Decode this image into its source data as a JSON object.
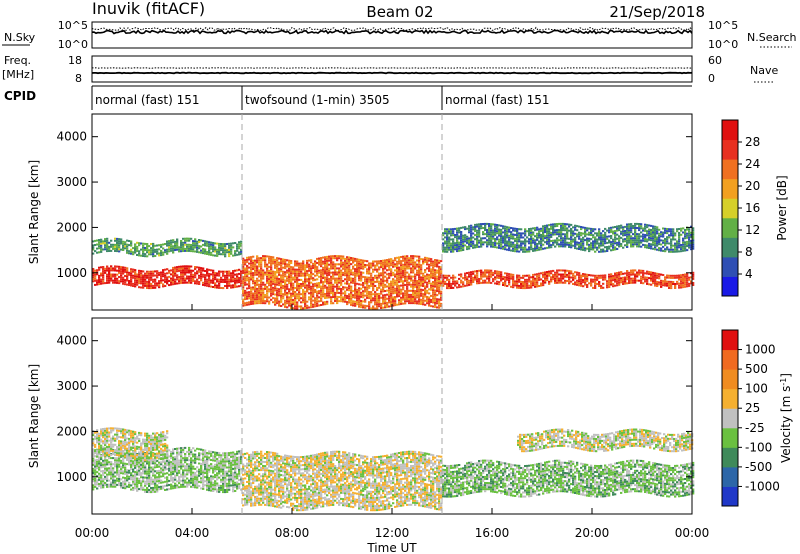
{
  "header": {
    "site": "Inuvik (fitACF)",
    "beam": "Beam 02",
    "date": "21/Sep/2018"
  },
  "nsky_panel": {
    "left_label": "N.Sky",
    "left_ticks": [
      "10^5",
      "10^0"
    ],
    "right_ticks": [
      "10^5",
      "10^0"
    ],
    "right_label": "N.Search"
  },
  "freq_panel": {
    "left_label_line1": "Freq.",
    "left_label_line2": "[MHz]",
    "left_ticks": [
      "18",
      "8"
    ],
    "right_ticks": [
      "60",
      "0"
    ],
    "right_label": "Nave"
  },
  "cpid": {
    "label": "CPID",
    "segments": [
      {
        "label": "normal (fast) 151",
        "start_hour": 0,
        "end_hour": 6
      },
      {
        "label": "twofsound (1-min) 3505",
        "start_hour": 6,
        "end_hour": 14
      },
      {
        "label": "normal (fast) 151",
        "start_hour": 14,
        "end_hour": 24
      }
    ]
  },
  "axes": {
    "ylabel": "Slant Range [km]",
    "yticks": [
      "1000",
      "2000",
      "3000",
      "4000"
    ],
    "ylim_km": [
      180,
      4500
    ],
    "xlabel": "Time UT",
    "xticks": [
      "00:00",
      "04:00",
      "08:00",
      "12:00",
      "16:00",
      "20:00",
      "00:00"
    ],
    "xlim_hours": [
      0,
      24
    ]
  },
  "power_colorbar": {
    "label": "Power [dB]",
    "ticks": [
      "4",
      "8",
      "12",
      "16",
      "20",
      "24",
      "28"
    ],
    "colors": [
      "#1a1ae6",
      "#2f4fb4",
      "#3f8a6a",
      "#62b046",
      "#d6d02a",
      "#f2a020",
      "#f07020",
      "#e83020",
      "#e01010"
    ]
  },
  "velocity_colorbar": {
    "label": "Velocity [m s^-1]",
    "ticks": [
      "1000",
      "500",
      "100",
      "25",
      "-25",
      "-100",
      "-500",
      "-1000"
    ],
    "colors": [
      "#2038c8",
      "#2c66a8",
      "#3f8a5a",
      "#6ac040",
      "#c0c0c0",
      "#f5b030",
      "#f08c20",
      "#f06a20",
      "#e01010"
    ]
  },
  "chart_data": {
    "type": "heatmap",
    "title": "Inuvik (fitACF) Beam 02 21/Sep/2018",
    "panels": [
      {
        "quantity": "Power",
        "unit": "dB",
        "scale": [
          0,
          30
        ],
        "description_bands": [
          {
            "t_start": 0,
            "t_end": 6,
            "range_km": [
              700,
              1100
            ],
            "typical_value": 26
          },
          {
            "t_start": 0,
            "t_end": 6,
            "range_km": [
              1400,
              1700
            ],
            "typical_value": 10
          },
          {
            "t_start": 6,
            "t_end": 14,
            "range_km": [
              250,
              1300
            ],
            "typical_value": 22
          },
          {
            "t_start": 14,
            "t_end": 24,
            "range_km": [
              700,
              1000
            ],
            "typical_value": 24
          },
          {
            "t_start": 14,
            "t_end": 24,
            "range_km": [
              1500,
              2000
            ],
            "typical_value": 8
          }
        ]
      },
      {
        "quantity": "Velocity",
        "unit": "m s^-1",
        "scale": [
          -1000,
          1000
        ],
        "description_bands": [
          {
            "t_start": 0,
            "t_end": 6,
            "range_km": [
              700,
              1600
            ],
            "typical_value": -150
          },
          {
            "t_start": 0,
            "t_end": 3,
            "range_km": [
              1400,
              2000
            ],
            "typical_value": 0
          },
          {
            "t_start": 6,
            "t_end": 14,
            "range_km": [
              300,
              1500
            ],
            "typical_value": 50
          },
          {
            "t_start": 14,
            "t_end": 24,
            "range_km": [
              600,
              1300
            ],
            "typical_value": -200
          },
          {
            "t_start": 17,
            "t_end": 24,
            "range_km": [
              1600,
              2000
            ],
            "typical_value": 0
          }
        ]
      }
    ],
    "x": {
      "label": "Time UT",
      "range_hours": [
        0,
        24
      ]
    },
    "y": {
      "label": "Slant Range [km]",
      "range_km": [
        180,
        4500
      ]
    },
    "mode_changes_hours": [
      6,
      14
    ]
  }
}
